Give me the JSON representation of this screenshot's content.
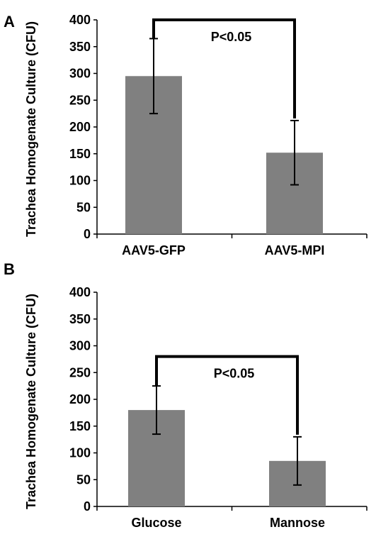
{
  "chart_data": [
    {
      "type": "bar",
      "panel_label": "A",
      "categories": [
        "AAV5-GFP",
        "AAV5-MPI"
      ],
      "values": [
        295,
        152
      ],
      "errors": [
        70,
        60
      ],
      "ylabel": "Trachea Homogenate Culture (CFU)",
      "ylim": [
        0,
        400
      ],
      "yticks": [
        0,
        50,
        100,
        150,
        200,
        250,
        300,
        350,
        400
      ],
      "bar_color": "#808080",
      "grid": false,
      "annotation": {
        "text": "P<0.05",
        "bracket": [
          "AAV5-GFP",
          "AAV5-MPI"
        ],
        "bracket_top": 400
      }
    },
    {
      "type": "bar",
      "panel_label": "B",
      "categories": [
        "Glucose",
        "Mannose"
      ],
      "values": [
        180,
        85
      ],
      "errors": [
        45,
        45
      ],
      "ylabel": "Trachea Homogenate Culture (CFU)",
      "ylim": [
        0,
        400
      ],
      "yticks": [
        0,
        50,
        100,
        150,
        200,
        250,
        300,
        350,
        400
      ],
      "bar_color": "#808080",
      "grid": false,
      "annotation": {
        "text": "P<0.05",
        "bracket": [
          "Glucose",
          "Mannose"
        ],
        "bracket_top": 280
      }
    }
  ]
}
